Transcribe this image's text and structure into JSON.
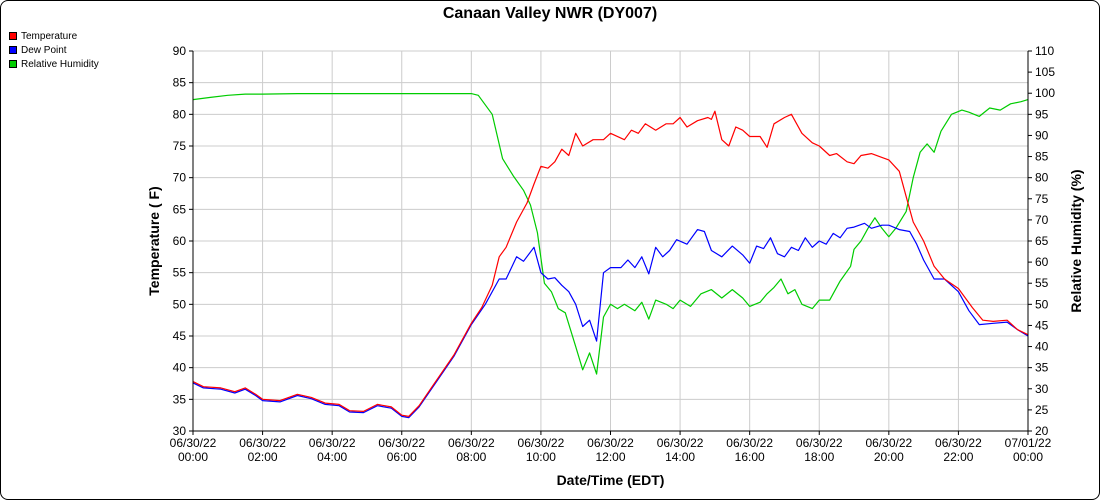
{
  "chart_data": {
    "type": "line",
    "title": "Canaan Valley NWR (DY007)",
    "xlabel": "Date/Time (EDT)",
    "ylabel": "Temperature ( F)",
    "y2label": "Relative Humidity (%)",
    "grid": true,
    "legend_position": "top-left",
    "x_tick_labels": [
      [
        "06/30/22",
        "00:00"
      ],
      [
        "06/30/22",
        "02:00"
      ],
      [
        "06/30/22",
        "04:00"
      ],
      [
        "06/30/22",
        "06:00"
      ],
      [
        "06/30/22",
        "08:00"
      ],
      [
        "06/30/22",
        "10:00"
      ],
      [
        "06/30/22",
        "12:00"
      ],
      [
        "06/30/22",
        "14:00"
      ],
      [
        "06/30/22",
        "16:00"
      ],
      [
        "06/30/22",
        "18:00"
      ],
      [
        "06/30/22",
        "20:00"
      ],
      [
        "06/30/22",
        "22:00"
      ],
      [
        "07/01/22",
        "00:00"
      ]
    ],
    "x_hours": [
      0,
      2,
      4,
      6,
      8,
      10,
      12,
      14,
      16,
      18,
      20,
      22,
      24
    ],
    "xlim": [
      0,
      24
    ],
    "ylim": [
      30,
      90
    ],
    "y_ticks": [
      30,
      35,
      40,
      45,
      50,
      55,
      60,
      65,
      70,
      75,
      80,
      85,
      90
    ],
    "y2lim": [
      20,
      110
    ],
    "y2_ticks": [
      20,
      25,
      30,
      35,
      40,
      45,
      50,
      55,
      60,
      65,
      70,
      75,
      80,
      85,
      90,
      95,
      100,
      105,
      110
    ],
    "series": [
      {
        "name": "Temperature",
        "color": "#ff0000",
        "axis": "left",
        "points": [
          [
            0,
            37.8
          ],
          [
            0.3,
            37
          ],
          [
            0.8,
            36.8
          ],
          [
            1.2,
            36.2
          ],
          [
            1.5,
            36.8
          ],
          [
            1.8,
            35.8
          ],
          [
            2.0,
            35
          ],
          [
            2.5,
            34.8
          ],
          [
            3.0,
            35.8
          ],
          [
            3.4,
            35.3
          ],
          [
            3.8,
            34.4
          ],
          [
            4.2,
            34.2
          ],
          [
            4.5,
            33.2
          ],
          [
            4.9,
            33.1
          ],
          [
            5.3,
            34.2
          ],
          [
            5.7,
            33.8
          ],
          [
            6.0,
            32.5
          ],
          [
            6.2,
            32.3
          ],
          [
            6.5,
            34
          ],
          [
            7.0,
            38
          ],
          [
            7.5,
            42
          ],
          [
            8.0,
            47
          ],
          [
            8.3,
            49.5
          ],
          [
            8.6,
            53
          ],
          [
            8.8,
            57.5
          ],
          [
            9.0,
            59
          ],
          [
            9.3,
            63
          ],
          [
            9.6,
            66
          ],
          [
            9.8,
            69
          ],
          [
            10.0,
            71.8
          ],
          [
            10.2,
            71.5
          ],
          [
            10.4,
            72.5
          ],
          [
            10.6,
            74.5
          ],
          [
            10.8,
            73.5
          ],
          [
            11.0,
            77
          ],
          [
            11.2,
            75
          ],
          [
            11.5,
            76
          ],
          [
            11.8,
            76
          ],
          [
            12.0,
            77
          ],
          [
            12.4,
            76
          ],
          [
            12.6,
            77.5
          ],
          [
            12.8,
            77
          ],
          [
            13.0,
            78.5
          ],
          [
            13.3,
            77.5
          ],
          [
            13.6,
            78.5
          ],
          [
            13.8,
            78.5
          ],
          [
            14.0,
            79.5
          ],
          [
            14.2,
            78
          ],
          [
            14.5,
            79
          ],
          [
            14.8,
            79.5
          ],
          [
            14.9,
            79.2
          ],
          [
            15.0,
            80.5
          ],
          [
            15.2,
            76
          ],
          [
            15.4,
            75
          ],
          [
            15.6,
            78
          ],
          [
            15.8,
            77.5
          ],
          [
            16.0,
            76.5
          ],
          [
            16.3,
            76.5
          ],
          [
            16.5,
            74.8
          ],
          [
            16.7,
            78.5
          ],
          [
            17.0,
            79.5
          ],
          [
            17.2,
            80
          ],
          [
            17.5,
            77
          ],
          [
            17.8,
            75.5
          ],
          [
            18.0,
            75
          ],
          [
            18.3,
            73.5
          ],
          [
            18.5,
            73.8
          ],
          [
            18.8,
            72.5
          ],
          [
            19.0,
            72.2
          ],
          [
            19.2,
            73.5
          ],
          [
            19.5,
            73.8
          ],
          [
            19.8,
            73.2
          ],
          [
            20.0,
            72.8
          ],
          [
            20.3,
            71
          ],
          [
            20.5,
            67
          ],
          [
            20.7,
            63
          ],
          [
            21.0,
            60
          ],
          [
            21.3,
            56
          ],
          [
            21.6,
            54
          ],
          [
            22.0,
            52.5
          ],
          [
            22.4,
            49.5
          ],
          [
            22.7,
            47.5
          ],
          [
            23.0,
            47.3
          ],
          [
            23.4,
            47.5
          ],
          [
            23.7,
            46
          ],
          [
            24.0,
            45.2
          ]
        ]
      },
      {
        "name": "Dew Point",
        "color": "#0000ff",
        "axis": "left",
        "points": [
          [
            0,
            37.6
          ],
          [
            0.3,
            36.8
          ],
          [
            0.8,
            36.6
          ],
          [
            1.2,
            36
          ],
          [
            1.5,
            36.6
          ],
          [
            1.8,
            35.6
          ],
          [
            2.0,
            34.8
          ],
          [
            2.5,
            34.6
          ],
          [
            3.0,
            35.6
          ],
          [
            3.4,
            35.1
          ],
          [
            3.8,
            34.2
          ],
          [
            4.2,
            34
          ],
          [
            4.5,
            33
          ],
          [
            4.9,
            32.9
          ],
          [
            5.3,
            34
          ],
          [
            5.7,
            33.6
          ],
          [
            6.0,
            32.3
          ],
          [
            6.2,
            32.1
          ],
          [
            6.5,
            33.8
          ],
          [
            7.0,
            37.8
          ],
          [
            7.5,
            41.8
          ],
          [
            8.0,
            46.8
          ],
          [
            8.4,
            50
          ],
          [
            8.8,
            54
          ],
          [
            9.0,
            54
          ],
          [
            9.3,
            57.5
          ],
          [
            9.5,
            56.8
          ],
          [
            9.8,
            59
          ],
          [
            10.0,
            55
          ],
          [
            10.2,
            54
          ],
          [
            10.4,
            54.2
          ],
          [
            10.6,
            53
          ],
          [
            10.8,
            52
          ],
          [
            11.0,
            50
          ],
          [
            11.2,
            46.5
          ],
          [
            11.4,
            47.5
          ],
          [
            11.6,
            44.2
          ],
          [
            11.8,
            55
          ],
          [
            12.0,
            55.8
          ],
          [
            12.3,
            55.8
          ],
          [
            12.5,
            57
          ],
          [
            12.7,
            55.8
          ],
          [
            12.9,
            57.5
          ],
          [
            13.1,
            54.8
          ],
          [
            13.3,
            59
          ],
          [
            13.5,
            57.5
          ],
          [
            13.7,
            58.5
          ],
          [
            13.9,
            60.2
          ],
          [
            14.2,
            59.5
          ],
          [
            14.5,
            61.8
          ],
          [
            14.7,
            61.5
          ],
          [
            14.9,
            58.5
          ],
          [
            15.2,
            57.5
          ],
          [
            15.5,
            59.2
          ],
          [
            15.8,
            57.8
          ],
          [
            16.0,
            56.5
          ],
          [
            16.2,
            59.2
          ],
          [
            16.4,
            58.8
          ],
          [
            16.6,
            60.5
          ],
          [
            16.8,
            58
          ],
          [
            17.0,
            57.5
          ],
          [
            17.2,
            59
          ],
          [
            17.4,
            58.5
          ],
          [
            17.6,
            60.5
          ],
          [
            17.8,
            59
          ],
          [
            18.0,
            60
          ],
          [
            18.2,
            59.5
          ],
          [
            18.4,
            61.2
          ],
          [
            18.6,
            60.5
          ],
          [
            18.8,
            62
          ],
          [
            19.0,
            62.2
          ],
          [
            19.3,
            62.8
          ],
          [
            19.5,
            62
          ],
          [
            19.8,
            62.5
          ],
          [
            20.0,
            62.5
          ],
          [
            20.3,
            61.8
          ],
          [
            20.6,
            61.5
          ],
          [
            20.8,
            59.5
          ],
          [
            21.0,
            57
          ],
          [
            21.3,
            54
          ],
          [
            21.6,
            54
          ],
          [
            22.0,
            52
          ],
          [
            22.3,
            49
          ],
          [
            22.6,
            46.8
          ],
          [
            23.0,
            47
          ],
          [
            23.4,
            47.2
          ],
          [
            23.7,
            46
          ],
          [
            24.0,
            45
          ]
        ]
      },
      {
        "name": "Relative Humidity",
        "color": "#00cc00",
        "axis": "right",
        "points": [
          [
            0,
            98.5
          ],
          [
            0.5,
            99
          ],
          [
            1.0,
            99.5
          ],
          [
            1.5,
            99.8
          ],
          [
            2.0,
            99.8
          ],
          [
            3.0,
            99.9
          ],
          [
            4.0,
            99.9
          ],
          [
            5.0,
            99.9
          ],
          [
            6.0,
            99.9
          ],
          [
            7.0,
            99.9
          ],
          [
            8.0,
            99.9
          ],
          [
            8.2,
            99.5
          ],
          [
            8.6,
            95
          ],
          [
            8.9,
            84.5
          ],
          [
            9.2,
            80.5
          ],
          [
            9.5,
            77
          ],
          [
            9.7,
            73.5
          ],
          [
            9.9,
            67
          ],
          [
            10.1,
            55
          ],
          [
            10.3,
            53
          ],
          [
            10.5,
            49
          ],
          [
            10.7,
            48
          ],
          [
            11.0,
            40
          ],
          [
            11.2,
            34.5
          ],
          [
            11.4,
            38.5
          ],
          [
            11.6,
            33.5
          ],
          [
            11.8,
            47
          ],
          [
            12.0,
            50
          ],
          [
            12.2,
            49
          ],
          [
            12.4,
            50
          ],
          [
            12.7,
            48.5
          ],
          [
            12.9,
            50.5
          ],
          [
            13.1,
            46.5
          ],
          [
            13.3,
            51
          ],
          [
            13.6,
            50
          ],
          [
            13.8,
            49
          ],
          [
            14.0,
            51
          ],
          [
            14.3,
            49.5
          ],
          [
            14.6,
            52.5
          ],
          [
            14.9,
            53.5
          ],
          [
            15.2,
            51.5
          ],
          [
            15.5,
            53.5
          ],
          [
            15.8,
            51.5
          ],
          [
            16.0,
            49.5
          ],
          [
            16.3,
            50.5
          ],
          [
            16.5,
            52.5
          ],
          [
            16.7,
            54
          ],
          [
            16.9,
            56
          ],
          [
            17.1,
            52.5
          ],
          [
            17.3,
            53.5
          ],
          [
            17.5,
            50
          ],
          [
            17.8,
            49
          ],
          [
            18.0,
            51
          ],
          [
            18.3,
            51
          ],
          [
            18.6,
            55.5
          ],
          [
            18.9,
            59
          ],
          [
            19.0,
            63
          ],
          [
            19.2,
            65
          ],
          [
            19.4,
            68
          ],
          [
            19.6,
            70.5
          ],
          [
            19.8,
            68
          ],
          [
            20.0,
            66
          ],
          [
            20.2,
            68
          ],
          [
            20.5,
            72
          ],
          [
            20.7,
            80
          ],
          [
            20.9,
            86
          ],
          [
            21.1,
            88
          ],
          [
            21.3,
            86
          ],
          [
            21.5,
            91
          ],
          [
            21.8,
            95
          ],
          [
            22.1,
            96
          ],
          [
            22.3,
            95.5
          ],
          [
            22.6,
            94.5
          ],
          [
            22.9,
            96.5
          ],
          [
            23.2,
            96
          ],
          [
            23.5,
            97.5
          ],
          [
            23.8,
            98
          ],
          [
            24.0,
            98.5
          ]
        ]
      }
    ]
  }
}
